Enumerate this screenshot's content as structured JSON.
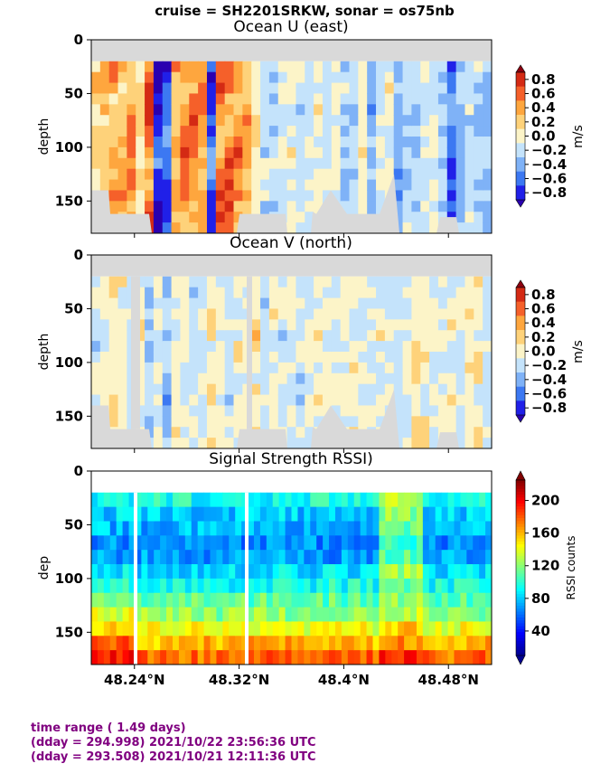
{
  "suptitle": "cruise = SH2201SRKW,  sonar = os75nb",
  "colors": {
    "diverging": [
      "#2a00b0",
      "#2020e8",
      "#3c78f2",
      "#7fb2f7",
      "#c4e3fb",
      "#fcf4c8",
      "#fed27a",
      "#fea63e",
      "#f5602a",
      "#d42a14",
      "#8c0010"
    ],
    "jet": [
      "#00008f",
      "#0000ff",
      "#0080ff",
      "#00ffff",
      "#80ff80",
      "#ffff00",
      "#ff8000",
      "#ff0000",
      "#800000"
    ],
    "nodata": "#d9d9d9",
    "footer_text": "#800080"
  },
  "x_ticklabels": [
    "48.24°N",
    "48.32°N",
    "48.4°N",
    "48.48°N"
  ],
  "footer": {
    "line1": "time range ( 1.49 days)",
    "line2": "(dday = 294.998) 2021/10/22 23:56:36 UTC",
    "line3": "(dday = 293.508) 2021/10/21 12:11:36 UTC"
  },
  "chart_data": [
    {
      "type": "heatmap",
      "title": "Ocean U (east)",
      "ylabel": "depth",
      "y_ticklabels": [
        "0",
        "50",
        "100",
        "150"
      ],
      "xlim": [
        48.207,
        48.513
      ],
      "ylim": [
        180,
        0
      ],
      "colorbar": {
        "label": "m/s",
        "ticklabels": [
          "0.8",
          "0.6",
          "0.4",
          "0.2",
          "0.0",
          "−0.2",
          "−0.4",
          "−0.6",
          "−0.8"
        ],
        "range": [
          -0.9,
          0.9
        ]
      },
      "columns": [
        0.3,
        0.45,
        0.5,
        0.5,
        0.7,
        0.25,
        0.85,
        -0.85,
        -0.7,
        0.5,
        0.8,
        0.7,
        0.6,
        -0.7,
        0.75,
        0.8,
        0.7,
        0.5,
        0.2,
        -0.1,
        -0.2,
        0.0,
        0.05,
        -0.1,
        0.0,
        0.1,
        -0.15,
        0.05,
        -0.2,
        -0.1,
        0.1,
        -0.3,
        -0.05,
        0.1,
        -0.4,
        -0.15,
        -0.25,
        -0.1,
        0.0,
        -0.2,
        -0.6,
        -0.3,
        -0.1,
        -0.2,
        -0.3
      ]
    },
    {
      "type": "heatmap",
      "title": "Ocean V (north)",
      "ylabel": "depth",
      "y_ticklabels": [
        "0",
        "50",
        "100",
        "150"
      ],
      "xlim": [
        48.207,
        48.513
      ],
      "ylim": [
        180,
        0
      ],
      "colorbar": {
        "label": "m/s",
        "ticklabels": [
          "0.8",
          "0.6",
          "0.4",
          "0.2",
          "0.0",
          "−0.2",
          "−0.4",
          "−0.6",
          "−0.8"
        ],
        "range": [
          -0.9,
          0.9
        ]
      },
      "columns": [
        -0.1,
        0.05,
        0.2,
        0.1,
        -0.1,
        0.1,
        -0.2,
        0.05,
        -0.3,
        0.1,
        0.05,
        -0.1,
        0.0,
        0.2,
        0.05,
        -0.1,
        0.1,
        0.05,
        0.2,
        -0.1,
        0.05,
        -0.05,
        0.0,
        -0.1,
        0.05,
        0.1,
        0.0,
        -0.05,
        0.05,
        0.1,
        0.0,
        -0.05,
        0.05,
        0.0,
        -0.1,
        0.0,
        0.2,
        0.15,
        0.05,
        0.0,
        0.1,
        -0.1,
        0.2,
        0.1,
        -0.05
      ]
    },
    {
      "type": "heatmap",
      "title": "Signal Strength RSSI)",
      "ylabel": "dep",
      "y_ticklabels": [
        "0",
        "50",
        "100",
        "150"
      ],
      "xlim": [
        48.207,
        48.513
      ],
      "ylim": [
        180,
        0
      ],
      "colorbar": {
        "label": "RSSI counts",
        "ticklabels": [
          "200",
          "160",
          "120",
          "80",
          "40"
        ],
        "range": [
          10,
          225
        ]
      },
      "depth_profile_counts": [
        95,
        80,
        75,
        65,
        70,
        85,
        95,
        110,
        120,
        140,
        160,
        175
      ]
    }
  ]
}
